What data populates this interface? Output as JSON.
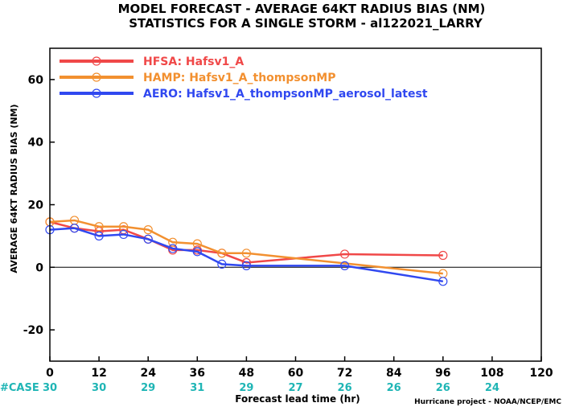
{
  "chart_data": {
    "type": "line",
    "title_line1": "MODEL FORECAST - AVERAGE 64KT RADIUS BIAS (NM)",
    "title_line2": "STATISTICS FOR A SINGLE STORM - al122021_LARRY",
    "ylabel": "AVERAGE 64KT RADIUS BIAS (NM)",
    "xlabel": "Forecast lead time (hr)",
    "xlim": [
      0,
      120
    ],
    "ylim": [
      -30,
      70
    ],
    "x_ticks": [
      0,
      12,
      24,
      36,
      48,
      60,
      72,
      84,
      96,
      108,
      120
    ],
    "y_ticks": [
      -20,
      0,
      20,
      40,
      60
    ],
    "zero_line": true,
    "legend_position": "top-left",
    "series": [
      {
        "name": "HFSA: Hafsv1_A",
        "color": "#f04848",
        "x": [
          0,
          6,
          12,
          18,
          24,
          30,
          36,
          42,
          48,
          72,
          96
        ],
        "y": [
          14.5,
          12.5,
          11.5,
          12,
          9,
          5.5,
          5.5,
          4.5,
          1.5,
          4.2,
          3.8
        ]
      },
      {
        "name": "HAMP: Hafsv1_A_thompsonMP",
        "color": "#f29030",
        "x": [
          0,
          6,
          12,
          18,
          24,
          30,
          36,
          42,
          48,
          96
        ],
        "y": [
          14.5,
          15,
          13,
          13,
          12,
          8,
          7.5,
          4.5,
          4.5,
          -2
        ]
      },
      {
        "name": "AERO: Hafsv1_A_thompsonMP_aerosol_latest",
        "color": "#3048f0",
        "x": [
          0,
          6,
          12,
          18,
          24,
          30,
          36,
          42,
          48,
          72,
          96
        ],
        "y": [
          12,
          12.5,
          10,
          10.5,
          9,
          6,
          5,
          1,
          0.5,
          0.5,
          -4.5
        ]
      }
    ],
    "cases": {
      "label": "#CASE",
      "x": [
        0,
        12,
        24,
        36,
        48,
        60,
        72,
        84,
        96,
        108
      ],
      "values": [
        "30",
        "30",
        "29",
        "31",
        "29",
        "27",
        "26",
        "26",
        "26",
        "24"
      ]
    },
    "credit": "Hurricane project - NOAA/NCEP/EMC"
  }
}
